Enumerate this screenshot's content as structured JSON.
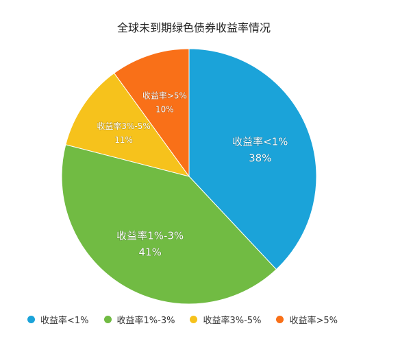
{
  "chart_data": {
    "type": "pie",
    "title": "全球未到期绿色债券收益率情况",
    "categories": [
      "收益率<1%",
      "收益率1%-3%",
      "收益率3%-5%",
      "收益率>5%"
    ],
    "values": [
      38,
      41,
      11,
      10
    ],
    "value_labels": [
      "38%",
      "41%",
      "11%",
      "10%"
    ],
    "colors": [
      "#1ba3d9",
      "#71bb43",
      "#f6c21c",
      "#f97018"
    ],
    "start_angle_deg": 0,
    "direction": "clockwise",
    "legend_position": "bottom"
  }
}
